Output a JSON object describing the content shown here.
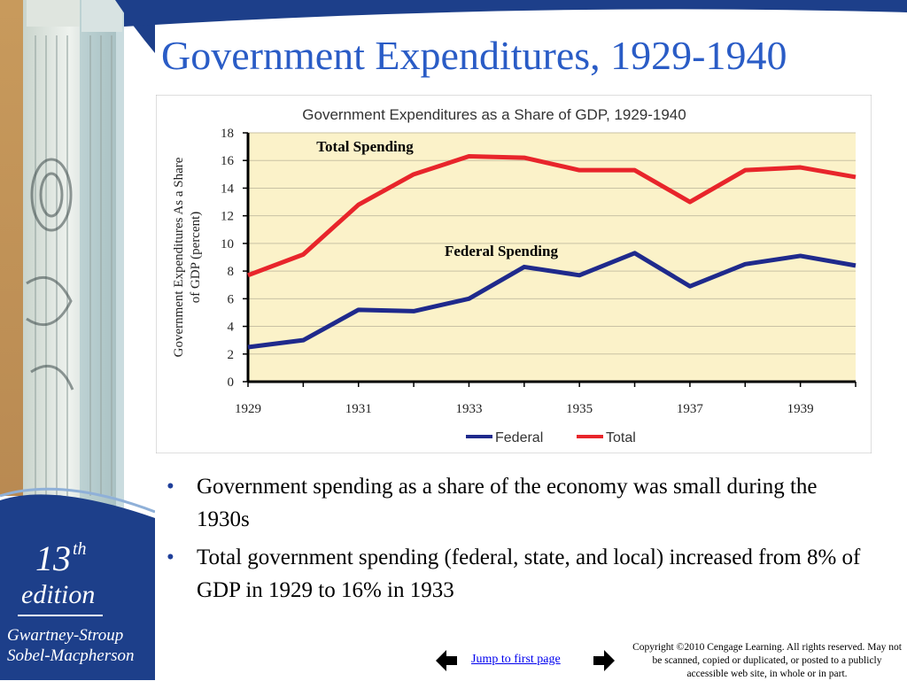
{
  "slide": {
    "title": "Government Expenditures, 1929-1940"
  },
  "sidebar": {
    "edition_number": "13",
    "edition_suffix": "th",
    "edition_word": "edition",
    "authors_line1": "Gwartney-Stroup",
    "authors_line2": "Sobel-Macpherson"
  },
  "bullets": [
    "Government spending as a share of the economy was small during the 1930s",
    "Total government spending (federal, state, and local) increased from 8% of GDP in 1929 to 16% in 1933"
  ],
  "footer": {
    "jump_label": "Jump to first page",
    "copyright": "Copyright ©2010 Cengage Learning. All rights reserved. May not be scanned, copied or duplicated, or posted to a publicly accessible web site, in whole or in part."
  },
  "colors": {
    "title": "#2a5cc6",
    "federal": "#1f2a8c",
    "total": "#e8252b",
    "plot_bg": "#fbf2c9",
    "sidebar_blue": "#1d3f8a"
  },
  "chart_data": {
    "type": "line",
    "title": "Government Expenditures as a Share of GDP, 1929-1940",
    "ylabel": "Government Expenditures As a Share of GDP (percent)",
    "xlabel": "",
    "x": [
      1929,
      1930,
      1931,
      1932,
      1933,
      1934,
      1935,
      1936,
      1937,
      1938,
      1939,
      1940
    ],
    "xticks": [
      1929,
      1931,
      1933,
      1935,
      1937,
      1939
    ],
    "ylim": [
      0,
      18
    ],
    "yticks": [
      0,
      2,
      4,
      6,
      8,
      10,
      12,
      14,
      16,
      18
    ],
    "grid": true,
    "legend_position": "bottom",
    "series": [
      {
        "name": "Federal",
        "values": [
          2.5,
          3.0,
          5.2,
          5.1,
          6.0,
          8.3,
          7.7,
          9.3,
          6.9,
          8.5,
          9.1,
          8.4
        ]
      },
      {
        "name": "Total",
        "values": [
          7.7,
          9.2,
          12.8,
          15.0,
          16.3,
          16.2,
          15.3,
          15.3,
          13.0,
          15.3,
          15.5,
          14.8
        ]
      }
    ],
    "annotations": [
      {
        "text": "Total Spending",
        "series": "Total"
      },
      {
        "text": "Federal Spending",
        "series": "Federal"
      }
    ]
  }
}
